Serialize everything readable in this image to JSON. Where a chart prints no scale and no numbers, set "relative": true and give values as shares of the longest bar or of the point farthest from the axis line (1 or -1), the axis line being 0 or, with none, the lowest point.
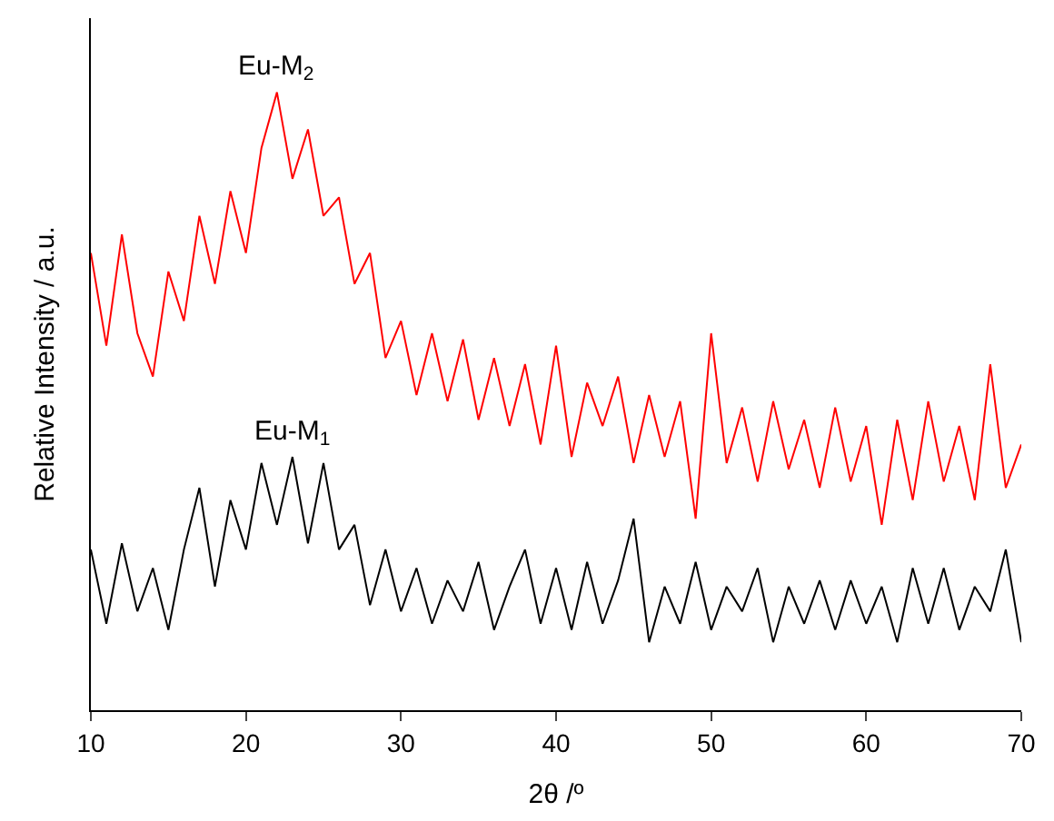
{
  "chart_data": {
    "type": "line",
    "relative": true,
    "xlabel": "2θ /º",
    "ylabel": "Relative Intensity / a.u.",
    "xlim": [
      10,
      70
    ],
    "xticks": [
      10,
      20,
      30,
      40,
      50,
      60,
      70
    ],
    "legend": false,
    "marker": "none",
    "line_style": "solid",
    "x": [
      10,
      11,
      12,
      13,
      14,
      15,
      16,
      17,
      18,
      19,
      20,
      21,
      22,
      23,
      24,
      25,
      26,
      27,
      28,
      29,
      30,
      31,
      32,
      33,
      34,
      35,
      36,
      37,
      38,
      39,
      40,
      41,
      42,
      43,
      44,
      45,
      46,
      47,
      48,
      49,
      50,
      51,
      52,
      53,
      54,
      55,
      56,
      57,
      58,
      59,
      60,
      61,
      62,
      63,
      64,
      65,
      66,
      67,
      68,
      69,
      70
    ],
    "series": [
      {
        "name": "Eu-M$_{2}$",
        "color": "#ff0000",
        "values": [
          0.74,
          0.59,
          0.77,
          0.61,
          0.54,
          0.71,
          0.63,
          0.8,
          0.69,
          0.84,
          0.74,
          0.91,
          1.0,
          0.86,
          0.94,
          0.8,
          0.83,
          0.69,
          0.74,
          0.57,
          0.63,
          0.51,
          0.61,
          0.5,
          0.6,
          0.47,
          0.57,
          0.46,
          0.56,
          0.43,
          0.59,
          0.41,
          0.53,
          0.46,
          0.54,
          0.4,
          0.51,
          0.41,
          0.5,
          0.31,
          0.61,
          0.4,
          0.49,
          0.37,
          0.5,
          0.39,
          0.47,
          0.36,
          0.49,
          0.37,
          0.46,
          0.3,
          0.47,
          0.34,
          0.5,
          0.37,
          0.46,
          0.34,
          0.56,
          0.36,
          0.43
        ]
      },
      {
        "name": "Eu-M$_{1}$",
        "color": "#000000",
        "values": [
          0.26,
          0.14,
          0.27,
          0.16,
          0.23,
          0.13,
          0.26,
          0.36,
          0.2,
          0.34,
          0.26,
          0.4,
          0.3,
          0.41,
          0.27,
          0.4,
          0.26,
          0.3,
          0.17,
          0.26,
          0.16,
          0.23,
          0.14,
          0.21,
          0.16,
          0.24,
          0.13,
          0.2,
          0.26,
          0.14,
          0.23,
          0.13,
          0.24,
          0.14,
          0.21,
          0.31,
          0.11,
          0.2,
          0.14,
          0.24,
          0.13,
          0.2,
          0.16,
          0.23,
          0.11,
          0.2,
          0.14,
          0.21,
          0.13,
          0.21,
          0.14,
          0.2,
          0.11,
          0.23,
          0.14,
          0.23,
          0.13,
          0.2,
          0.16,
          0.26,
          0.11
        ]
      }
    ]
  }
}
